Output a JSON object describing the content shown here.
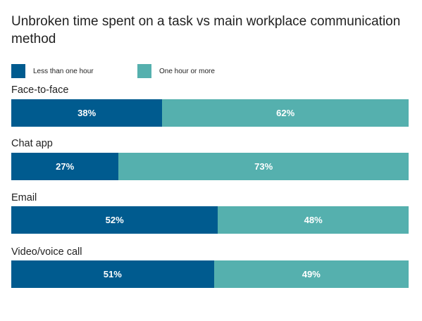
{
  "chart_data": {
    "type": "bar",
    "orientation": "horizontal",
    "stacked": true,
    "title": "Unbroken time spent on a task vs main workplace communication method",
    "categories": [
      "Face-to-face",
      "Chat app",
      "Email",
      "Video/voice call"
    ],
    "series": [
      {
        "name": "Less than one hour",
        "color": "#005b8f",
        "values": [
          38,
          27,
          52,
          51
        ]
      },
      {
        "name": "One hour or more",
        "color": "#55b0ae",
        "values": [
          62,
          73,
          48,
          49
        ]
      }
    ],
    "value_suffix": "%",
    "xlim": [
      0,
      100
    ],
    "legend": "top-left",
    "grid": false
  }
}
